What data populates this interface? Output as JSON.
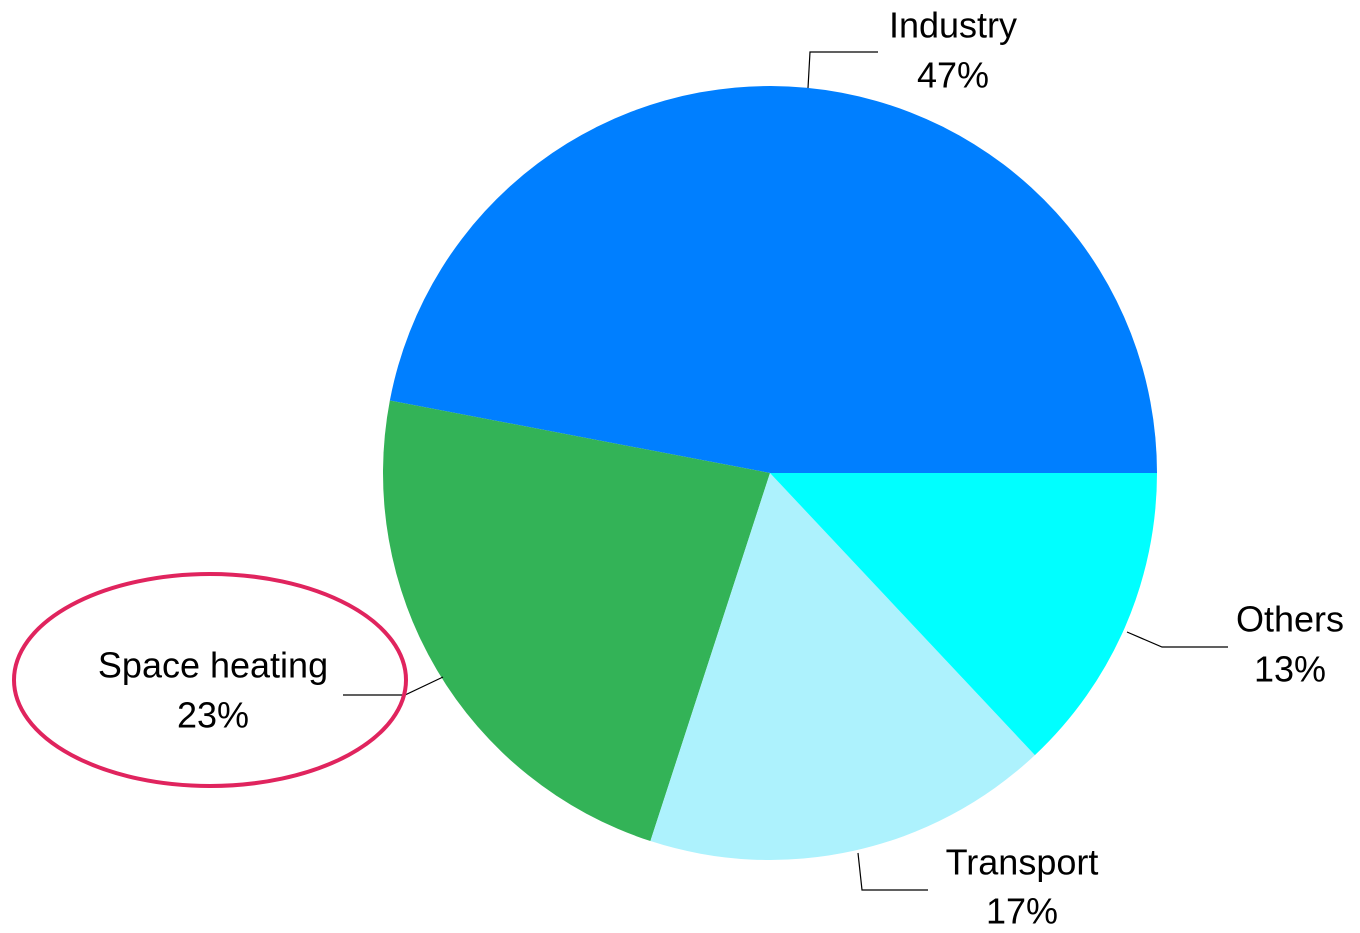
{
  "chart_data": {
    "type": "pie",
    "categories": [
      "Industry",
      "Space heating",
      "Transport",
      "Others"
    ],
    "values": [
      47,
      23,
      17,
      13
    ],
    "value_labels": [
      "47%",
      "23%",
      "17%",
      "13%"
    ],
    "colors": [
      "#007fff",
      "#33b357",
      "#adf2fd",
      "#00ffff"
    ]
  }
}
